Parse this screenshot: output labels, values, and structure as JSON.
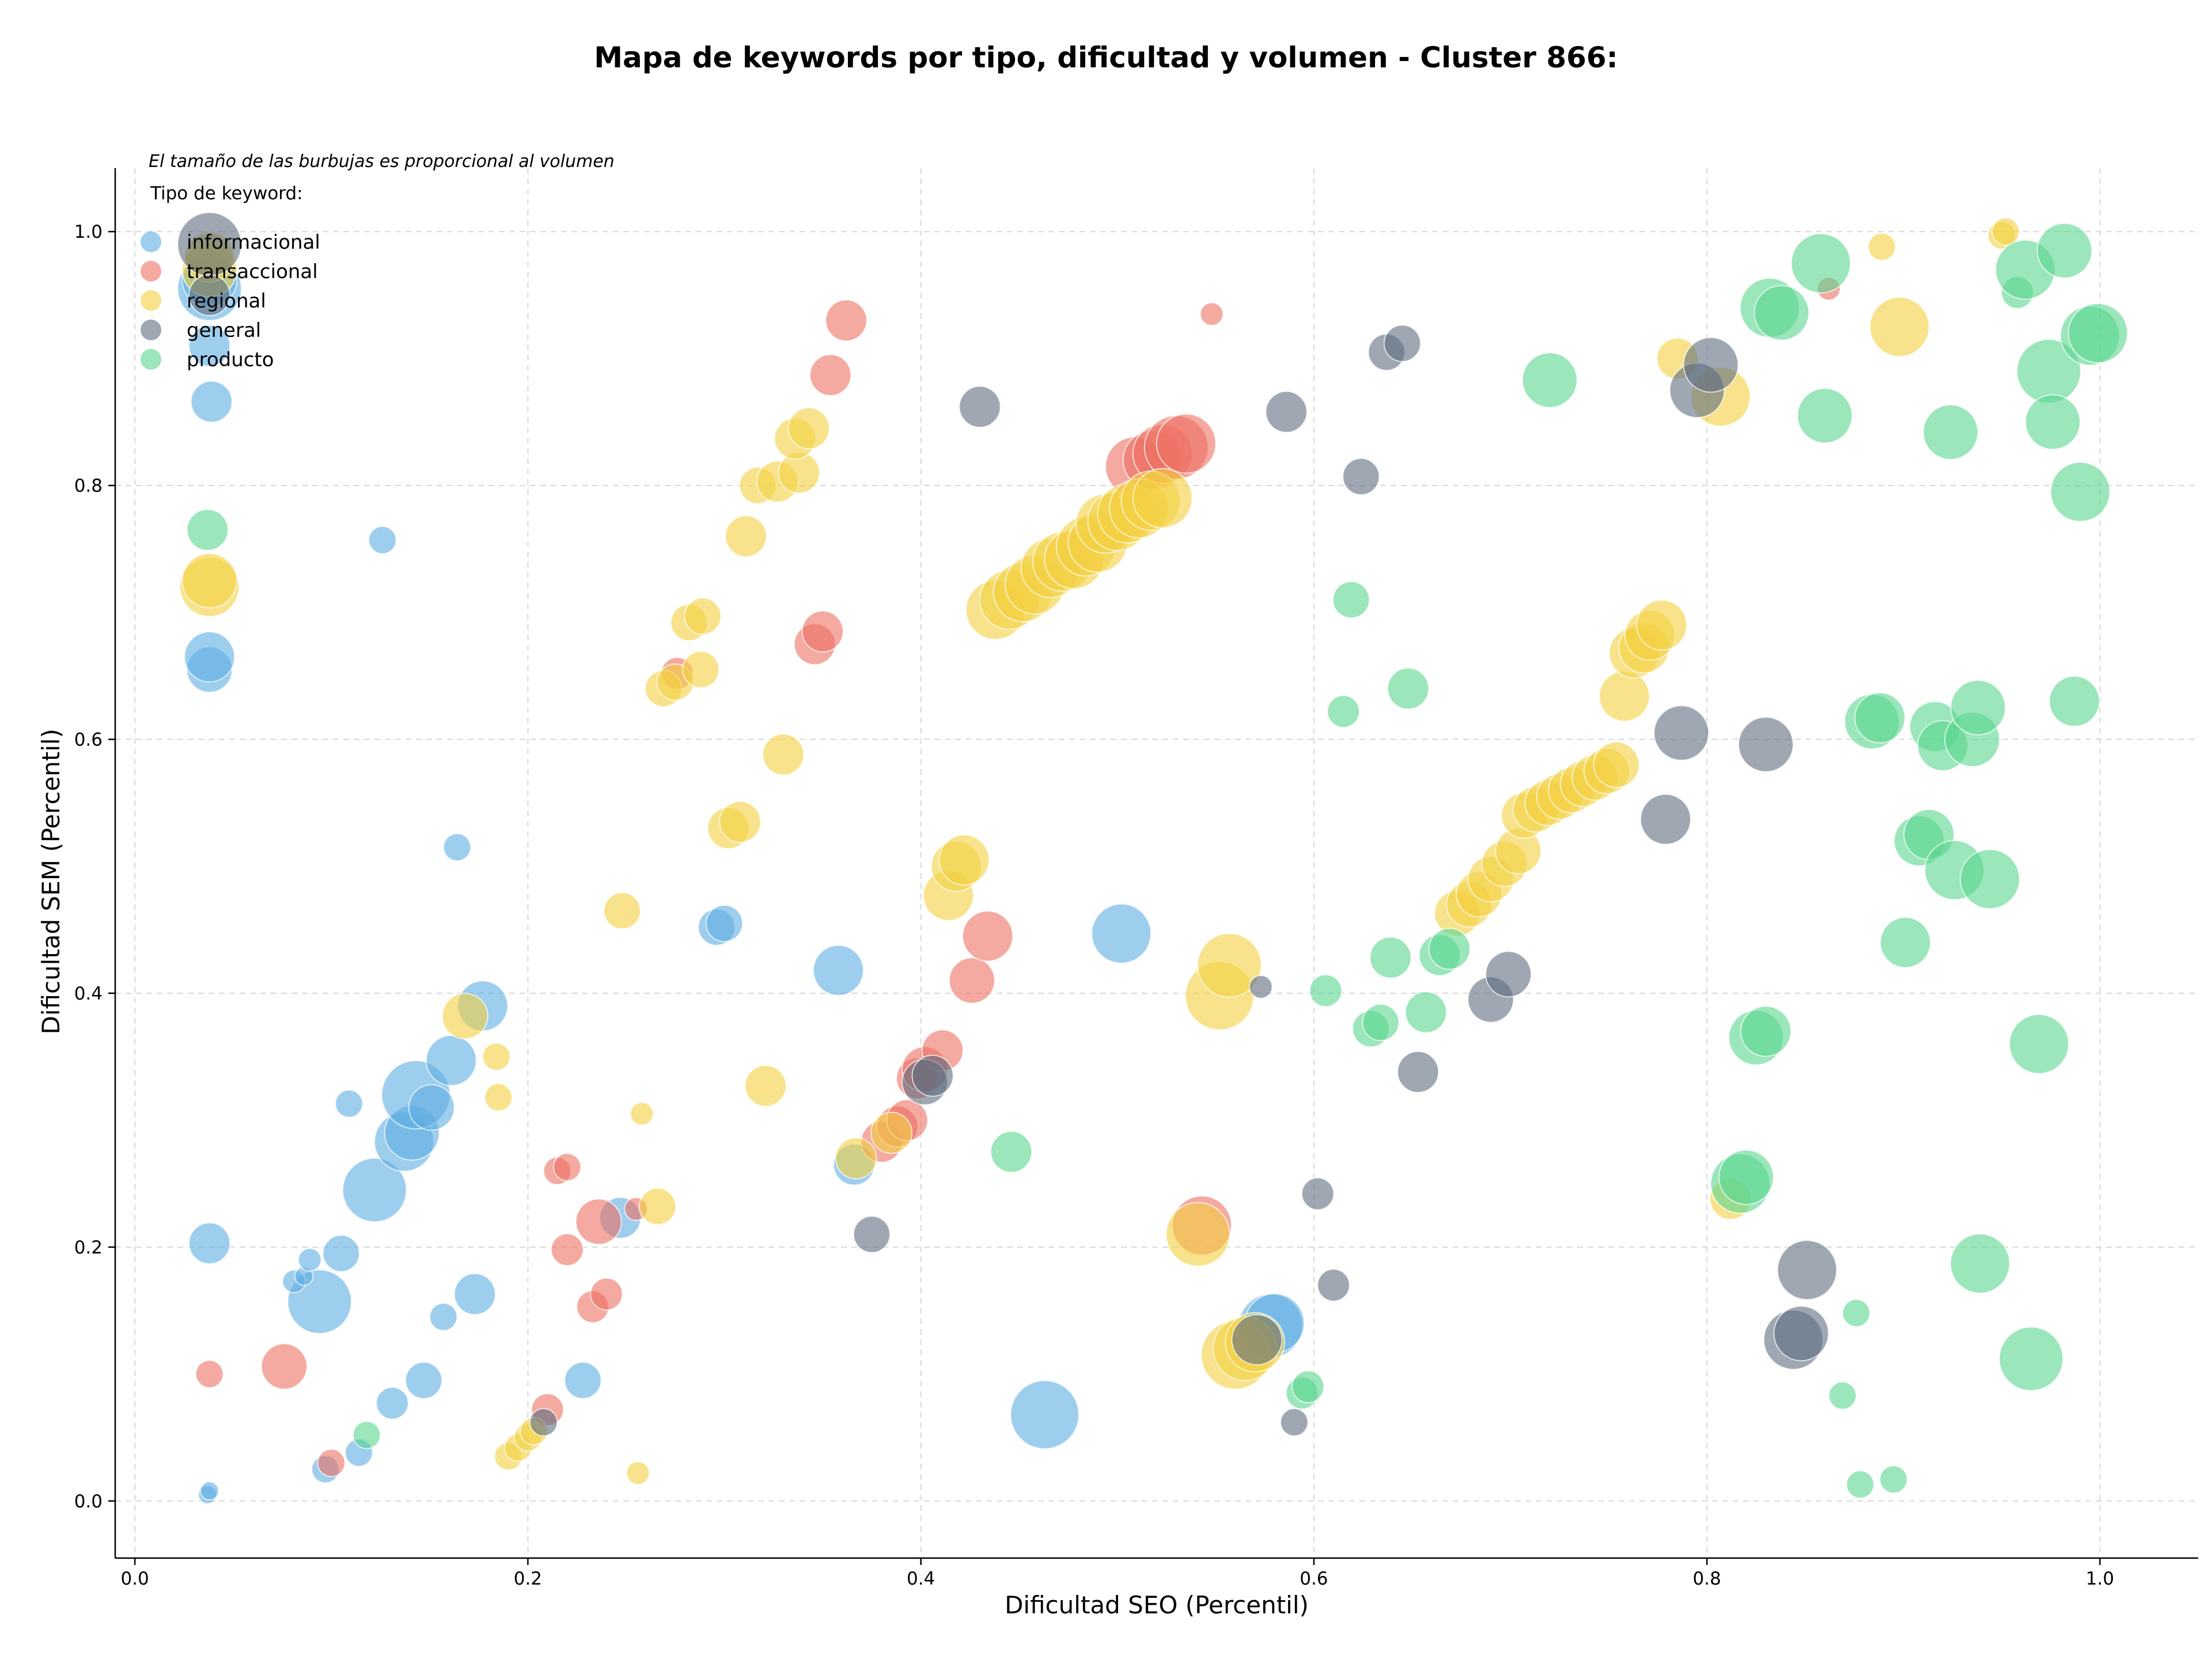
{
  "chart_data": {
    "type": "scatter",
    "title": "Mapa de keywords por tipo, dificultad y volumen - Cluster 866:",
    "xlabel": "Dificultad SEO (Percentil)",
    "ylabel": "Dificultad SEM (Percentil)",
    "xlim": [
      -0.01,
      1.05
    ],
    "ylim": [
      -0.045,
      1.05
    ],
    "xticks": [
      "0.0",
      "0.2",
      "0.4",
      "0.6",
      "0.8",
      "1.0"
    ],
    "yticks": [
      "0.0",
      "0.2",
      "0.4",
      "0.6",
      "0.8",
      "1.0"
    ],
    "grid": true,
    "note": "El tamaño de las burbujas es proporcional al volumen",
    "legend": {
      "title": "Tipo de keyword:",
      "position": "top-left"
    },
    "series": [
      {
        "name": "informacional",
        "color": "#5DADE2",
        "points": [
          [
            0.037,
            0.005,
            4
          ],
          [
            0.038,
            0.008,
            4
          ],
          [
            0.097,
            0.025,
            6
          ],
          [
            0.114,
            0.038,
            6
          ],
          [
            0.131,
            0.077,
            7
          ],
          [
            0.147,
            0.095,
            8
          ],
          [
            0.094,
            0.157,
            14
          ],
          [
            0.081,
            0.173,
            5
          ],
          [
            0.086,
            0.177,
            4
          ],
          [
            0.089,
            0.19,
            5
          ],
          [
            0.105,
            0.195,
            8
          ],
          [
            0.157,
            0.145,
            6
          ],
          [
            0.173,
            0.163,
            9
          ],
          [
            0.228,
            0.095,
            8
          ],
          [
            0.038,
            0.203,
            9
          ],
          [
            0.122,
            0.245,
            14
          ],
          [
            0.137,
            0.283,
            13
          ],
          [
            0.141,
            0.29,
            12
          ],
          [
            0.143,
            0.32,
            15
          ],
          [
            0.151,
            0.31,
            10
          ],
          [
            0.161,
            0.347,
            11
          ],
          [
            0.177,
            0.39,
            11
          ],
          [
            0.109,
            0.313,
            6
          ],
          [
            0.164,
            0.515,
            6
          ],
          [
            0.126,
            0.757,
            6
          ],
          [
            0.039,
            0.866,
            9
          ],
          [
            0.038,
            0.91,
            9
          ],
          [
            0.038,
            0.955,
            14
          ],
          [
            0.038,
            0.962,
            12
          ],
          [
            0.038,
            0.98,
            10
          ],
          [
            0.038,
            0.655,
            10
          ],
          [
            0.038,
            0.665,
            11
          ],
          [
            0.247,
            0.223,
            9
          ],
          [
            0.296,
            0.452,
            8
          ],
          [
            0.3,
            0.455,
            8
          ],
          [
            0.358,
            0.418,
            11
          ],
          [
            0.366,
            0.265,
            9
          ],
          [
            0.502,
            0.447,
            13
          ],
          [
            0.463,
            0.068,
            15
          ],
          [
            0.578,
            0.138,
            14
          ],
          [
            0.58,
            0.14,
            13
          ]
        ]
      },
      {
        "name": "transaccional",
        "color": "#EC7063",
        "points": [
          [
            0.038,
            0.1,
            6
          ],
          [
            0.076,
            0.106,
            10
          ],
          [
            0.1,
            0.03,
            6
          ],
          [
            0.21,
            0.072,
            7
          ],
          [
            0.22,
            0.198,
            7
          ],
          [
            0.233,
            0.153,
            7
          ],
          [
            0.24,
            0.163,
            7
          ],
          [
            0.215,
            0.26,
            6
          ],
          [
            0.22,
            0.263,
            6
          ],
          [
            0.236,
            0.22,
            10
          ],
          [
            0.255,
            0.23,
            5
          ],
          [
            0.276,
            0.652,
            7
          ],
          [
            0.346,
            0.675,
            9
          ],
          [
            0.35,
            0.685,
            9
          ],
          [
            0.354,
            0.887,
            9
          ],
          [
            0.362,
            0.93,
            9
          ],
          [
            0.548,
            0.935,
            5
          ],
          [
            0.38,
            0.283,
            9
          ],
          [
            0.388,
            0.295,
            9
          ],
          [
            0.393,
            0.3,
            9
          ],
          [
            0.398,
            0.333,
            9
          ],
          [
            0.402,
            0.34,
            10
          ],
          [
            0.411,
            0.355,
            9
          ],
          [
            0.426,
            0.41,
            10
          ],
          [
            0.434,
            0.445,
            11
          ],
          [
            0.509,
            0.815,
            13
          ],
          [
            0.518,
            0.82,
            13
          ],
          [
            0.523,
            0.825,
            13
          ],
          [
            0.53,
            0.83,
            14
          ],
          [
            0.535,
            0.833,
            13
          ],
          [
            0.543,
            0.217,
            13
          ],
          [
            0.862,
            0.955,
            5
          ]
        ]
      },
      {
        "name": "regional",
        "color": "#F4D03F",
        "points": [
          [
            0.038,
            0.72,
            13
          ],
          [
            0.038,
            0.725,
            12
          ],
          [
            0.038,
            0.97,
            12
          ],
          [
            0.038,
            0.98,
            11
          ],
          [
            0.19,
            0.035,
            6
          ],
          [
            0.195,
            0.042,
            6
          ],
          [
            0.2,
            0.05,
            6
          ],
          [
            0.203,
            0.055,
            6
          ],
          [
            0.256,
            0.022,
            5
          ],
          [
            0.185,
            0.318,
            6
          ],
          [
            0.184,
            0.35,
            6
          ],
          [
            0.258,
            0.305,
            5
          ],
          [
            0.266,
            0.232,
            8
          ],
          [
            0.248,
            0.465,
            8
          ],
          [
            0.168,
            0.382,
            10
          ],
          [
            0.321,
            0.327,
            9
          ],
          [
            0.302,
            0.53,
            9
          ],
          [
            0.308,
            0.535,
            9
          ],
          [
            0.33,
            0.588,
            9
          ],
          [
            0.269,
            0.64,
            8
          ],
          [
            0.275,
            0.645,
            8
          ],
          [
            0.288,
            0.655,
            8
          ],
          [
            0.282,
            0.692,
            8
          ],
          [
            0.289,
            0.697,
            8
          ],
          [
            0.311,
            0.76,
            9
          ],
          [
            0.317,
            0.8,
            8
          ],
          [
            0.327,
            0.803,
            9
          ],
          [
            0.338,
            0.81,
            9
          ],
          [
            0.336,
            0.837,
            9
          ],
          [
            0.343,
            0.845,
            9
          ],
          [
            0.367,
            0.27,
            9
          ],
          [
            0.385,
            0.29,
            9
          ],
          [
            0.414,
            0.477,
            11
          ],
          [
            0.418,
            0.5,
            11
          ],
          [
            0.422,
            0.505,
            11
          ],
          [
            0.438,
            0.702,
            13
          ],
          [
            0.445,
            0.71,
            13
          ],
          [
            0.452,
            0.716,
            13
          ],
          [
            0.458,
            0.722,
            13
          ],
          [
            0.466,
            0.735,
            13
          ],
          [
            0.472,
            0.74,
            13
          ],
          [
            0.478,
            0.742,
            13
          ],
          [
            0.484,
            0.752,
            13
          ],
          [
            0.49,
            0.755,
            13
          ],
          [
            0.494,
            0.77,
            13
          ],
          [
            0.5,
            0.772,
            13
          ],
          [
            0.505,
            0.778,
            13
          ],
          [
            0.511,
            0.782,
            13
          ],
          [
            0.517,
            0.788,
            13
          ],
          [
            0.523,
            0.79,
            13
          ],
          [
            0.552,
            0.398,
            15
          ],
          [
            0.557,
            0.422,
            14
          ],
          [
            0.541,
            0.21,
            14
          ],
          [
            0.56,
            0.115,
            15
          ],
          [
            0.565,
            0.12,
            14
          ],
          [
            0.57,
            0.125,
            13
          ],
          [
            0.673,
            0.463,
            10
          ],
          [
            0.679,
            0.47,
            10
          ],
          [
            0.684,
            0.478,
            10
          ],
          [
            0.69,
            0.49,
            10
          ],
          [
            0.697,
            0.502,
            10
          ],
          [
            0.704,
            0.512,
            10
          ],
          [
            0.707,
            0.54,
            10
          ],
          [
            0.713,
            0.545,
            10
          ],
          [
            0.719,
            0.55,
            10
          ],
          [
            0.725,
            0.555,
            10
          ],
          [
            0.731,
            0.56,
            10
          ],
          [
            0.737,
            0.565,
            10
          ],
          [
            0.743,
            0.57,
            10
          ],
          [
            0.749,
            0.575,
            10
          ],
          [
            0.754,
            0.58,
            10
          ],
          [
            0.758,
            0.634,
            11
          ],
          [
            0.763,
            0.668,
            11
          ],
          [
            0.768,
            0.672,
            11
          ],
          [
            0.771,
            0.682,
            11
          ],
          [
            0.777,
            0.69,
            11
          ],
          [
            0.785,
            0.9,
            9
          ],
          [
            0.807,
            0.87,
            13
          ],
          [
            0.812,
            0.238,
            9
          ],
          [
            0.889,
            0.988,
            6
          ],
          [
            0.898,
            0.925,
            13
          ],
          [
            0.95,
            0.997,
            6
          ],
          [
            0.952,
            1.0,
            6
          ]
        ]
      },
      {
        "name": "general",
        "color": "#5D6D7E",
        "points": [
          [
            0.038,
            0.99,
            14
          ],
          [
            0.038,
            0.95,
            9
          ],
          [
            0.208,
            0.062,
            6
          ],
          [
            0.375,
            0.21,
            8
          ],
          [
            0.402,
            0.33,
            10
          ],
          [
            0.406,
            0.335,
            9
          ],
          [
            0.43,
            0.862,
            9
          ],
          [
            0.571,
            0.127,
            11
          ],
          [
            0.573,
            0.405,
            5
          ],
          [
            0.586,
            0.858,
            9
          ],
          [
            0.59,
            0.062,
            6
          ],
          [
            0.602,
            0.242,
            7
          ],
          [
            0.61,
            0.17,
            7
          ],
          [
            0.624,
            0.807,
            8
          ],
          [
            0.637,
            0.905,
            8
          ],
          [
            0.645,
            0.912,
            8
          ],
          [
            0.653,
            0.338,
            9
          ],
          [
            0.69,
            0.395,
            10
          ],
          [
            0.699,
            0.415,
            10
          ],
          [
            0.779,
            0.537,
            11
          ],
          [
            0.787,
            0.605,
            12
          ],
          [
            0.795,
            0.875,
            12
          ],
          [
            0.802,
            0.895,
            12
          ],
          [
            0.83,
            0.596,
            12
          ],
          [
            0.844,
            0.127,
            13
          ],
          [
            0.848,
            0.132,
            12
          ],
          [
            0.851,
            0.182,
            13
          ]
        ]
      },
      {
        "name": "producto",
        "color": "#58D68D",
        "points": [
          [
            0.118,
            0.052,
            6
          ],
          [
            0.037,
            0.765,
            9
          ],
          [
            0.446,
            0.275,
            9
          ],
          [
            0.594,
            0.085,
            7
          ],
          [
            0.597,
            0.09,
            7
          ],
          [
            0.606,
            0.402,
            7
          ],
          [
            0.615,
            0.622,
            7
          ],
          [
            0.619,
            0.71,
            8
          ],
          [
            0.629,
            0.372,
            8
          ],
          [
            0.634,
            0.377,
            8
          ],
          [
            0.639,
            0.428,
            9
          ],
          [
            0.648,
            0.64,
            9
          ],
          [
            0.657,
            0.385,
            9
          ],
          [
            0.664,
            0.43,
            9
          ],
          [
            0.669,
            0.435,
            9
          ],
          [
            0.72,
            0.883,
            12
          ],
          [
            0.817,
            0.25,
            13
          ],
          [
            0.82,
            0.255,
            12
          ],
          [
            0.825,
            0.365,
            12
          ],
          [
            0.83,
            0.37,
            11
          ],
          [
            0.832,
            0.94,
            13
          ],
          [
            0.838,
            0.936,
            12
          ],
          [
            0.858,
            0.975,
            13
          ],
          [
            0.86,
            0.855,
            12
          ],
          [
            0.876,
            0.148,
            6
          ],
          [
            0.869,
            0.083,
            6
          ],
          [
            0.878,
            0.013,
            6
          ],
          [
            0.895,
            0.017,
            6
          ],
          [
            0.884,
            0.614,
            12
          ],
          [
            0.888,
            0.617,
            11
          ],
          [
            0.901,
            0.44,
            11
          ],
          [
            0.908,
            0.52,
            11
          ],
          [
            0.913,
            0.525,
            11
          ],
          [
            0.916,
            0.61,
            11
          ],
          [
            0.92,
            0.595,
            11
          ],
          [
            0.924,
            0.842,
            12
          ],
          [
            0.926,
            0.497,
            13
          ],
          [
            0.935,
            0.6,
            12
          ],
          [
            0.938,
            0.625,
            12
          ],
          [
            0.939,
            0.187,
            13
          ],
          [
            0.944,
            0.49,
            13
          ],
          [
            0.958,
            0.952,
            7
          ],
          [
            0.962,
            0.97,
            13
          ],
          [
            0.965,
            0.112,
            14
          ],
          [
            0.969,
            0.36,
            13
          ],
          [
            0.974,
            0.89,
            14
          ],
          [
            0.976,
            0.85,
            12
          ],
          [
            0.982,
            0.985,
            12
          ],
          [
            0.987,
            0.63,
            11
          ],
          [
            0.99,
            0.795,
            13
          ],
          [
            0.995,
            0.918,
            13
          ],
          [
            0.999,
            0.92,
            13
          ]
        ]
      }
    ]
  }
}
